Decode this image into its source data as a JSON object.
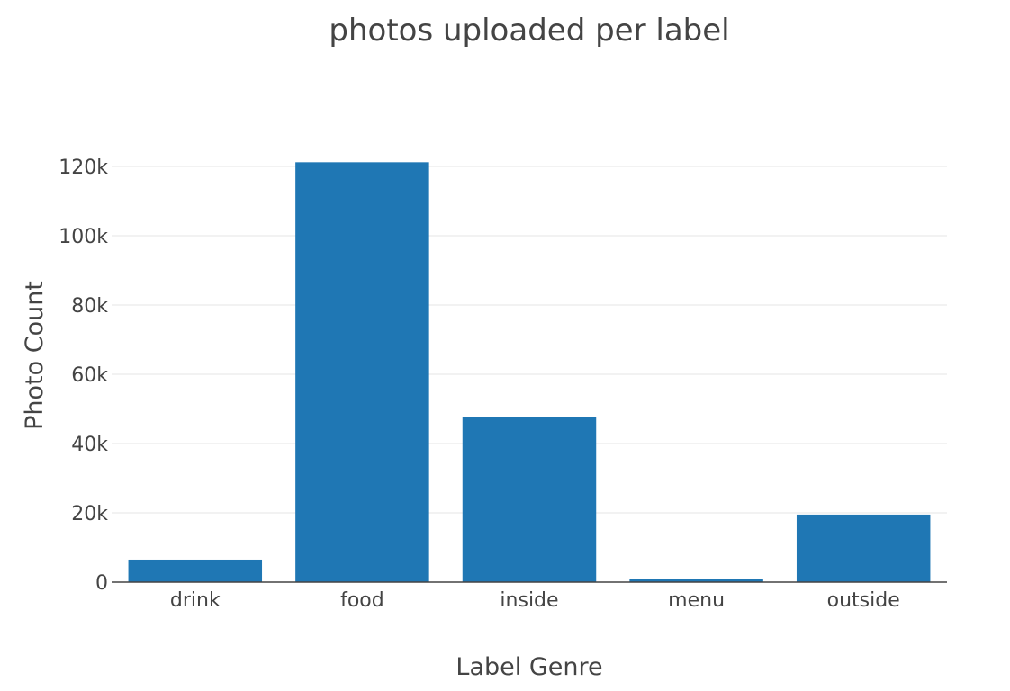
{
  "chart_data": {
    "type": "bar",
    "title": "photos uploaded per label",
    "xlabel": "Label Genre",
    "ylabel": "Photo Count",
    "categories": [
      "drink",
      "food",
      "inside",
      "menu",
      "outside"
    ],
    "values": [
      6500,
      121200,
      47700,
      1000,
      19500
    ],
    "ylim": [
      0,
      127000
    ],
    "yticks": [
      0,
      20000,
      40000,
      60000,
      80000,
      100000,
      120000
    ],
    "ytick_labels": [
      "0",
      "20k",
      "40k",
      "60k",
      "80k",
      "100k",
      "120k"
    ],
    "bar_color": "#1f77b4",
    "grid": true,
    "legend": "none"
  }
}
